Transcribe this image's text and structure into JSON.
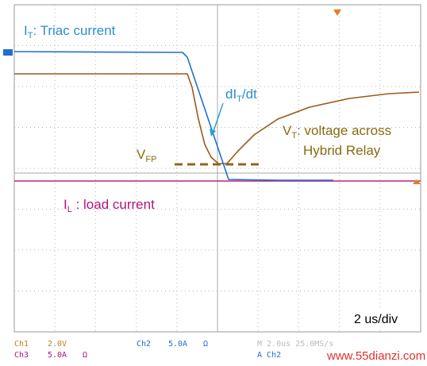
{
  "labels": {
    "triac": {
      "main": "I",
      "sub": "T",
      "rest": ": Triac current"
    },
    "didt": {
      "main": "dI",
      "sub": "T",
      "rest": "/dt"
    },
    "vt": {
      "main": "V",
      "sub": "T",
      "rest": ": voltage across",
      "line2": "Hybrid Relay"
    },
    "vfp": {
      "main": "V",
      "sub": "FP"
    },
    "load": {
      "main": "I",
      "sub": "L",
      "rest": " : load current"
    },
    "timebase": "2 us/div"
  },
  "status": {
    "ch1": "Ch1",
    "ch1_scale": "2.0V",
    "ch2": "Ch2",
    "ch2_scale": "5.0A",
    "ch2_unit": "Ω",
    "ch3": "Ch3",
    "ch3_scale": "5.0A",
    "ch3_unit": "Ω",
    "horizontal": "M 2.0us 25.0MS/s",
    "trigger": "A  Ch2"
  },
  "watermark": "www.55dianzi.com"
}
